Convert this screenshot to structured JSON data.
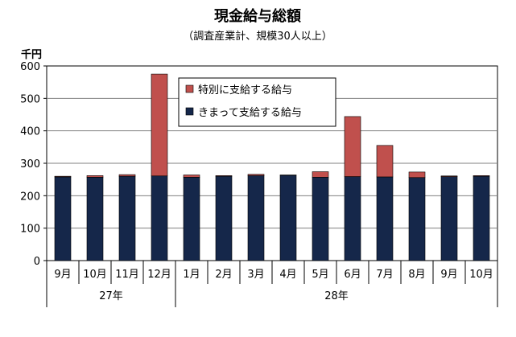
{
  "chart_data": {
    "type": "bar",
    "stacked": true,
    "title": "現金給与総額",
    "subtitle": "（調査産業計、規模30人以上）",
    "unit_label": "千円",
    "categories": [
      "9月",
      "10月",
      "11月",
      "12月",
      "1月",
      "2月",
      "3月",
      "4月",
      "5月",
      "6月",
      "7月",
      "8月",
      "9月",
      "10月"
    ],
    "year_groups": [
      {
        "label": "27年",
        "start": 0,
        "count": 4
      },
      {
        "label": "28年",
        "start": 4,
        "count": 10
      }
    ],
    "ylim": [
      0,
      600
    ],
    "yticks": [
      0,
      100,
      200,
      300,
      400,
      500,
      600
    ],
    "grid": true,
    "legend_position": "top-center",
    "series": [
      {
        "name": "きまって支給する給与",
        "color": "#15274a",
        "values": [
          258,
          257,
          260,
          261,
          257,
          260,
          262,
          263,
          257,
          259,
          258,
          256,
          259,
          260
        ]
      },
      {
        "name": "特別に支給する給与",
        "color": "#c0504d",
        "values": [
          2,
          5,
          5,
          314,
          7,
          2,
          4,
          1,
          17,
          185,
          97,
          17,
          2,
          2
        ]
      }
    ],
    "legend_order": [
      1,
      0
    ]
  }
}
